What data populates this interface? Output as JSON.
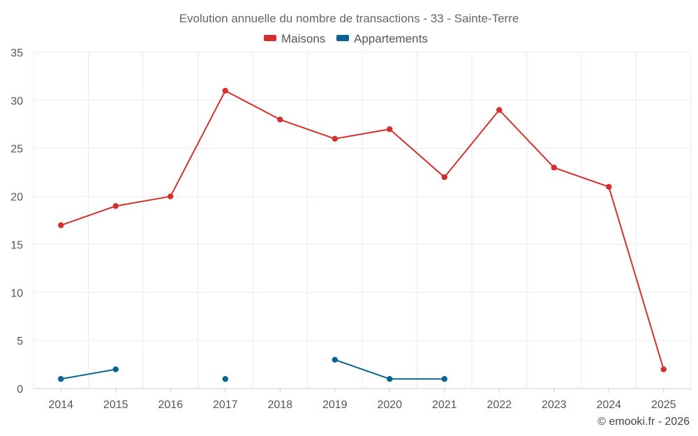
{
  "chart_data": {
    "type": "line",
    "title": "Evolution annuelle du nombre de transactions - 33 - Sainte-Terre",
    "x": [
      "2014",
      "2015",
      "2016",
      "2017",
      "2018",
      "2019",
      "2020",
      "2021",
      "2022",
      "2023",
      "2024",
      "2025"
    ],
    "ylim": [
      0,
      35
    ],
    "yticks": [
      0,
      5,
      10,
      15,
      20,
      25,
      30,
      35
    ],
    "grid": true,
    "legend_position": "top-center",
    "series": [
      {
        "name": "Maisons",
        "color": "#d32f2f",
        "values": [
          17,
          19,
          20,
          31,
          28,
          26,
          27,
          22,
          29,
          23,
          21,
          2
        ]
      },
      {
        "name": "Appartements",
        "color": "#0a6391",
        "values": [
          1,
          2,
          null,
          1,
          null,
          3,
          1,
          1,
          null,
          null,
          null,
          null
        ]
      }
    ]
  },
  "credit": "© emooki.fr - 2026"
}
